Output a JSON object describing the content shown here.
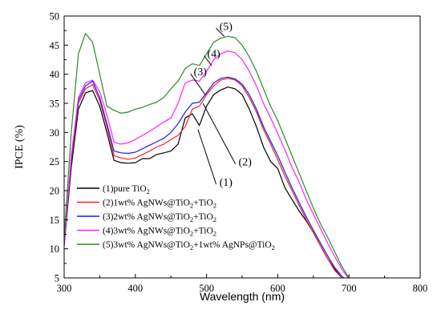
{
  "chart_data": {
    "type": "line",
    "xlabel": "Wavelength (nm)",
    "ylabel": "IPCE (%)",
    "xlim": [
      300,
      800
    ],
    "ylim": [
      5,
      50
    ],
    "xticks": [
      300,
      400,
      500,
      600,
      700,
      800
    ],
    "yticks": [
      5,
      10,
      15,
      20,
      25,
      30,
      35,
      40,
      45,
      50
    ],
    "grid": false,
    "legend_position": "bottom-left",
    "series": [
      {
        "name": "(1)pure TiO2",
        "legend_main": "(1)pure TiO",
        "legend_tail": [
          {
            "text": "2",
            "sub": true
          }
        ],
        "color": "#000000",
        "x": [
          300,
          310,
          320,
          330,
          340,
          350,
          360,
          370,
          380,
          390,
          400,
          410,
          420,
          430,
          440,
          450,
          460,
          470,
          480,
          490,
          500,
          510,
          520,
          530,
          540,
          550,
          560,
          570,
          580,
          590,
          600,
          610,
          620,
          630,
          640,
          650,
          660,
          670,
          680,
          690
        ],
        "y": [
          10.5,
          24,
          34,
          36.8,
          37.2,
          34.5,
          30,
          25.2,
          24.8,
          24.7,
          24.8,
          25.5,
          25.5,
          26.2,
          26.5,
          26.8,
          28,
          32.5,
          33.2,
          31.2,
          34.5,
          36.5,
          37.3,
          37.8,
          37.5,
          36.5,
          34,
          31,
          27.5,
          25,
          23.8,
          20.5,
          18.5,
          16.5,
          14.8,
          12.8,
          10.5,
          8.3,
          6.5,
          5
        ]
      },
      {
        "name": "(2)1wt% AgNWs@TiO2+TiO2",
        "legend_main": "(2)1wt% AgNWs@TiO",
        "legend_tail": [
          {
            "text": "2",
            "sub": true
          },
          {
            "text": "+TiO",
            "sub": false
          },
          {
            "text": "2",
            "sub": true
          }
        ],
        "color": "#ff2020",
        "x": [
          300,
          310,
          320,
          330,
          340,
          350,
          360,
          370,
          380,
          390,
          400,
          410,
          420,
          430,
          440,
          450,
          460,
          470,
          480,
          490,
          500,
          510,
          520,
          530,
          540,
          550,
          560,
          570,
          580,
          590,
          600,
          610,
          620,
          630,
          640,
          650,
          660,
          670,
          680,
          690
        ],
        "y": [
          11,
          25,
          35,
          37.5,
          38.2,
          35.5,
          31,
          26,
          25.6,
          25.4,
          25.6,
          26.2,
          26.8,
          27.5,
          28,
          28.8,
          29.5,
          31,
          34,
          34.5,
          36.5,
          38,
          39,
          39.3,
          39,
          38,
          36,
          33.5,
          30.5,
          28,
          25.3,
          22.5,
          20,
          17.5,
          15,
          12.8,
          10.5,
          8.3,
          6.3,
          5
        ]
      },
      {
        "name": "(3)2wt% AgNWs@TiO2+TiO2",
        "legend_main": "(3)2wt% AgNWs@TiO",
        "legend_tail": [
          {
            "text": "2",
            "sub": true
          },
          {
            "text": "+TiO",
            "sub": false
          },
          {
            "text": "2",
            "sub": true
          }
        ],
        "color": "#1a1aff",
        "x": [
          300,
          310,
          320,
          330,
          340,
          350,
          360,
          370,
          380,
          390,
          400,
          410,
          420,
          430,
          440,
          450,
          460,
          470,
          480,
          490,
          500,
          510,
          520,
          530,
          540,
          550,
          560,
          570,
          580,
          590,
          600,
          610,
          620,
          630,
          640,
          650,
          660,
          670,
          680,
          690,
          695
        ],
        "y": [
          11,
          25.5,
          35.5,
          38,
          38.8,
          36,
          31.5,
          26.8,
          26.5,
          26.4,
          26.6,
          27.2,
          27.8,
          28.4,
          29,
          30,
          31.5,
          33.5,
          35,
          35.2,
          36.8,
          38.5,
          39.3,
          39.5,
          39.2,
          38.3,
          36.5,
          34,
          31,
          28.5,
          26,
          23.2,
          20.5,
          18,
          15.5,
          13.2,
          11,
          8.8,
          6.8,
          5.3,
          4.8
        ]
      },
      {
        "name": "(4)3wt% AgNWs@TiO2+TiO2",
        "legend_main": "(4)3wt% AgNWs@TiO",
        "legend_tail": [
          {
            "text": "2",
            "sub": true
          },
          {
            "text": "+TiO",
            "sub": false
          },
          {
            "text": "2",
            "sub": true
          }
        ],
        "color": "#ff20ff",
        "x": [
          300,
          310,
          320,
          330,
          340,
          350,
          360,
          370,
          380,
          390,
          400,
          410,
          420,
          430,
          440,
          450,
          460,
          470,
          480,
          490,
          500,
          510,
          520,
          530,
          540,
          550,
          560,
          570,
          580,
          590,
          600,
          610,
          620,
          630,
          640,
          650,
          660,
          670,
          680,
          690,
          700
        ],
        "y": [
          11,
          26,
          36,
          38.5,
          39,
          37,
          33,
          28.3,
          28,
          28.2,
          28.8,
          29.5,
          30.2,
          31,
          31.8,
          32.5,
          35,
          38.5,
          39,
          38.8,
          40.5,
          42.5,
          43.5,
          44,
          43.7,
          42.5,
          40.5,
          38,
          35,
          32.5,
          29.8,
          27,
          24,
          21.5,
          18.5,
          16,
          13.5,
          11,
          8.7,
          6.5,
          4.8
        ]
      },
      {
        "name": "(5)3wt% AgNWs@TiO2+1wt% AgNPs@TiO2",
        "legend_main": "(5)3wt% AgNWs@TiO",
        "legend_tail": [
          {
            "text": "2",
            "sub": true
          },
          {
            "text": "+1wt% AgNPs@TiO",
            "sub": false
          },
          {
            "text": "2",
            "sub": true
          }
        ],
        "color": "#2a8a2a",
        "x": [
          300,
          310,
          320,
          330,
          340,
          350,
          360,
          370,
          380,
          390,
          400,
          410,
          420,
          430,
          440,
          450,
          460,
          470,
          480,
          490,
          500,
          510,
          520,
          530,
          540,
          550,
          560,
          570,
          580,
          590,
          600,
          610,
          620,
          630,
          640,
          650,
          660,
          670,
          680,
          690,
          700
        ],
        "y": [
          12,
          30,
          43.5,
          47,
          45.5,
          40,
          34.5,
          33.8,
          33.3,
          33.5,
          34,
          34.3,
          34.8,
          35.2,
          36,
          37.5,
          38.8,
          41,
          41.8,
          41.5,
          43.5,
          45.5,
          46.2,
          46.5,
          46.3,
          45,
          43,
          40.5,
          37.5,
          34.5,
          32,
          29,
          26,
          23,
          20,
          17,
          14.3,
          12,
          9.5,
          7,
          5
        ]
      }
    ],
    "annotations": [
      {
        "text": "(1)",
        "x": 518,
        "y": 21.5,
        "target_x": 488,
        "target_y": 30.5
      },
      {
        "text": "(2)",
        "x": 545,
        "y": 25,
        "target_x": 495,
        "target_y": 35
      },
      {
        "text": "(3)",
        "x": 482,
        "y": 40.5,
        "target_x": 498,
        "target_y": 36.5
      },
      {
        "text": "(4)",
        "x": 501,
        "y": 43.6,
        "target_x": 507,
        "target_y": 41.5
      },
      {
        "text": "(5)",
        "x": 518,
        "y": 48.3,
        "target_x": 525,
        "target_y": 46.5
      }
    ]
  }
}
